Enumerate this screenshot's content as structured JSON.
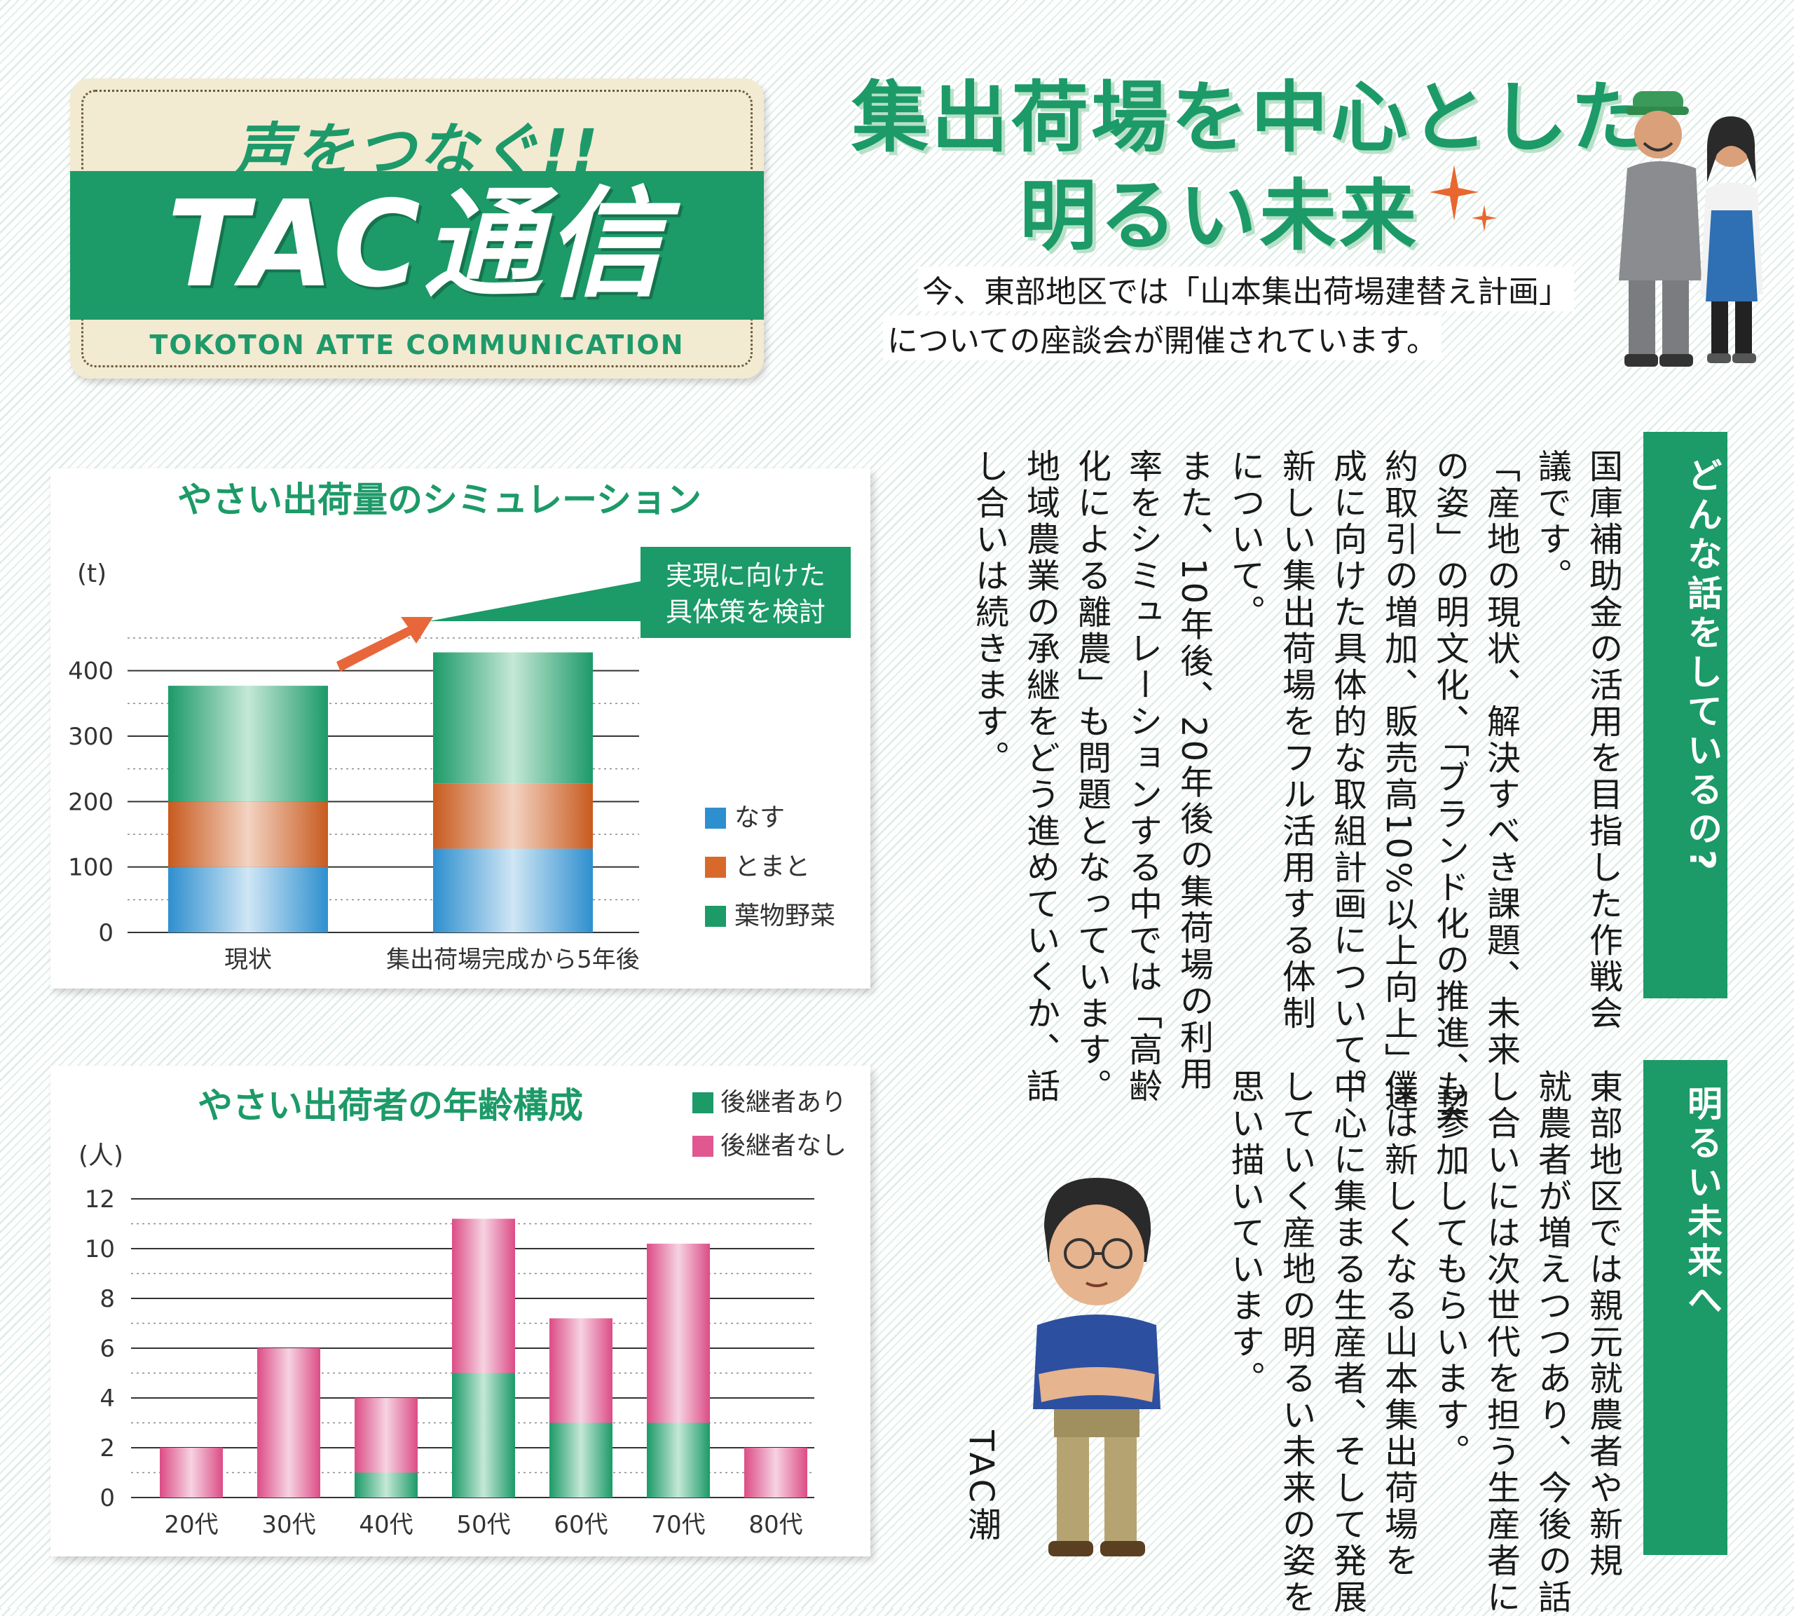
{
  "header": {
    "tagline": "声をつなぐ!!",
    "title": "TAC通信",
    "subtitle": "TOKOTON ATTE COMMUNICATION"
  },
  "headline": {
    "line1": "集出荷場を中心とした",
    "line2": "明るい未来"
  },
  "intro": {
    "line1": "今、東部地区では「山本集出荷場建替え計画」",
    "line2": "についての座談会が開催されています。"
  },
  "section1": {
    "tag": "どんな話をしているの?",
    "columns": [
      "国庫補助金の活用を目指した作戦会",
      "議です。",
      "「産地の現状、解決すべき課題、未来",
      "の姿」の明文化、「ブランド化の推進、契",
      "約取引の増加、販売高10%以上向上」達",
      "成に向けた具体的な取組計画について。",
      "新しい集出荷場をフル活用する体制",
      "について。",
      "また、10年後、20年後の集荷場の利用",
      "率をシミュレーションする中では「高齢",
      "化による離農」も問題となっています。",
      "地域農業の承継をどう進めていくか、話",
      "し合いは続きます。"
    ]
  },
  "section2": {
    "tag": "明るい未来へ",
    "columns": [
      "東部地区では親元就農者や新規",
      "就農者が増えつつあり、今後の話",
      "し合いには次世代を担う生産者に",
      "も参加してもらいます。",
      "僕は新しくなる山本集出荷場を",
      "中心に集まる生産者、そして発展",
      "していく産地の明るい未来の姿を",
      "思い描いています。"
    ],
    "signature": "TAC潮"
  },
  "chart_data": [
    {
      "type": "bar",
      "stacked": true,
      "title": "やさい出荷量のシミュレーション",
      "ylabel": "(t)",
      "ylim": [
        0,
        450
      ],
      "yticks": [
        "0",
        "100",
        "200",
        "300",
        "400"
      ],
      "categories": [
        "現状",
        "集出荷場完成から5年後"
      ],
      "series": [
        {
          "name": "なす",
          "values": [
            100,
            128
          ],
          "color": "#2e8fcf"
        },
        {
          "name": "とまと",
          "values": [
            100,
            100
          ],
          "color": "#d9692a"
        },
        {
          "name": "葉物野菜",
          "values": [
            177,
            200
          ],
          "color": "#1c9a68"
        }
      ],
      "annotation": "実現に向けた\n具体策を検討",
      "annotation_lines": [
        "実現に向けた",
        "具体策を検討"
      ],
      "legend": "right",
      "grid": true
    },
    {
      "type": "bar",
      "stacked": true,
      "title": "やさい出荷者の年齢構成",
      "ylabel": "(人)",
      "ylim": [
        0,
        12
      ],
      "yticks": [
        "0",
        "2",
        "4",
        "6",
        "8",
        "10",
        "12"
      ],
      "categories": [
        "20代",
        "30代",
        "40代",
        "50代",
        "60代",
        "70代",
        "80代"
      ],
      "series": [
        {
          "name": "後継者あり",
          "values": [
            0,
            0,
            1,
            5,
            3,
            3,
            0
          ],
          "color": "#1c9a68"
        },
        {
          "name": "後継者なし",
          "values": [
            2,
            6,
            3,
            6.2,
            4.2,
            7.2,
            2
          ],
          "color": "#e0588f"
        }
      ],
      "legend": "top-right",
      "grid": true
    }
  ]
}
